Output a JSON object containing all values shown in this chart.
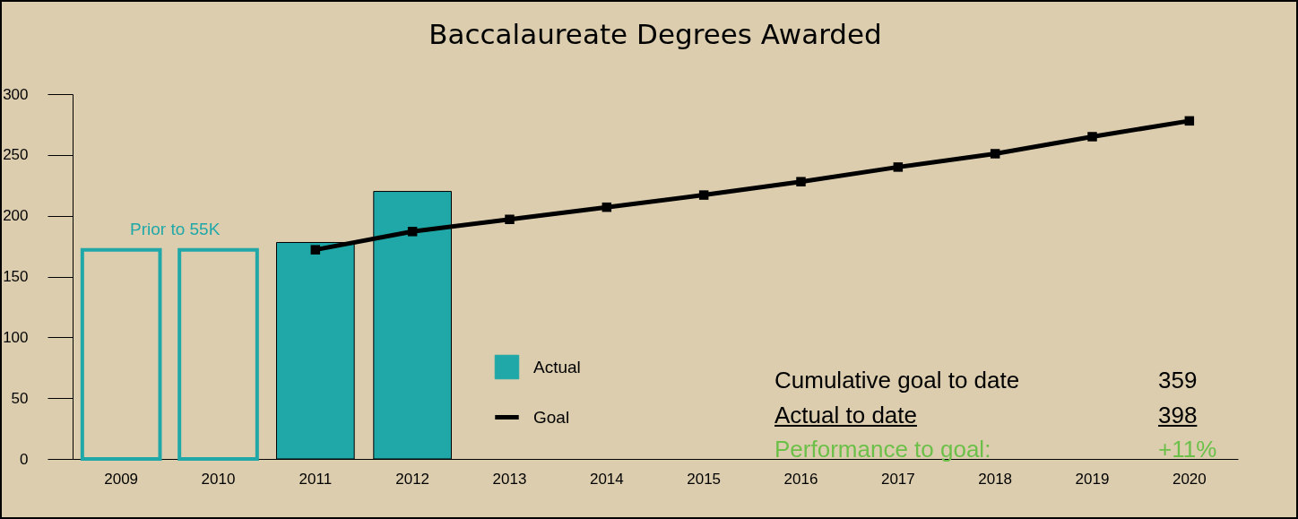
{
  "chart_data": {
    "type": "bar",
    "title": "Baccalaureate Degrees Awarded",
    "categories": [
      "2009",
      "2010",
      "2011",
      "2012",
      "2013",
      "2014",
      "2015",
      "2016",
      "2017",
      "2018",
      "2019",
      "2020"
    ],
    "series": [
      {
        "color": "#20a8a8",
        "values": [
          172,
          172,
          null,
          null,
          null,
          null,
          null,
          null,
          null,
          null,
          null,
          null
        ]
      },
      {
        "name": "Actual",
        "color": "#20a8a8",
        "values": [
          null,
          null,
          178,
          220,
          null,
          null,
          null,
          null,
          null,
          null,
          null,
          null
        ]
      },
      {
        "name": "Goal",
        "type": "line",
        "color": "#000000",
        "marker": "square",
        "values": [
          null,
          null,
          172,
          187,
          197,
          207,
          217,
          228,
          240,
          251,
          265,
          278
        ]
      }
    ],
    "ylim": [
      0,
      300
    ],
    "yticks": [
      0,
      50,
      100,
      150,
      200,
      250,
      300
    ],
    "grid": false,
    "legend": "bottom",
    "annotations": [
      "Prior to 55K",
      "Cumulative goal to date",
      "359",
      "Actual to date",
      "398",
      "Performance to goal:",
      "+11%"
    ]
  }
}
